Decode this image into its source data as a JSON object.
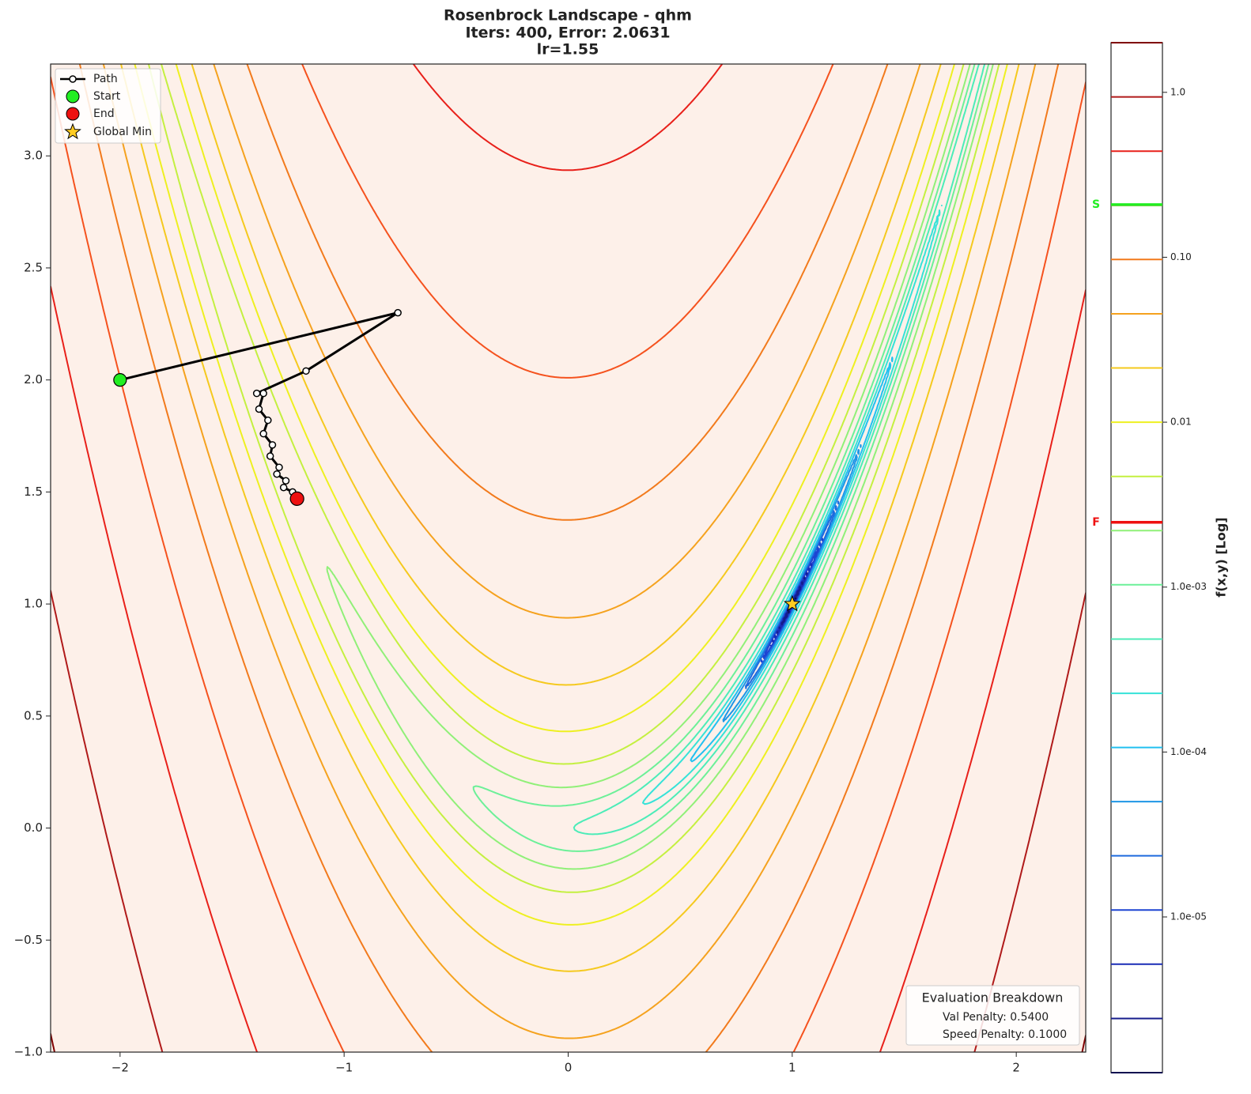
{
  "chart_data": {
    "type": "contour",
    "title": [
      "Rosenbrock Landscape - qhm",
      "Iters: 400, Error: 2.0631",
      "lr=1.55"
    ],
    "xlim": [
      -2.31,
      2.31
    ],
    "ylim": [
      -1.0,
      3.41
    ],
    "xticks": [
      {
        "value": -2,
        "label": "−2"
      },
      {
        "value": -1,
        "label": "−1"
      },
      0,
      1,
      2
    ],
    "yticks": [
      {
        "value": -1.0,
        "label": "−1.0"
      },
      {
        "value": -0.5,
        "label": "−0.5"
      },
      {
        "value": 0.0,
        "label": "0.0"
      },
      0.5,
      {
        "value": 1.0,
        "label": "1.0"
      },
      1.5,
      {
        "value": 2.0,
        "label": "2.0"
      },
      2.5,
      {
        "value": 3.0,
        "label": "3.0"
      }
    ],
    "levels": [
      2.0,
      0.938,
      0.44,
      0.2064,
      0.0969,
      0.0454,
      0.02132,
      0.01,
      0.00469,
      0.0022,
      0.001033,
      0.000484,
      0.000227,
      0.0001066,
      5e-05,
      2.35e-05,
      1.101e-05,
      5.17e-06,
      2.42e-06,
      1.137e-06
    ],
    "level_colors": [
      "#7f0000",
      "#b01a1a",
      "#e8201a",
      "#f5521e",
      "#f27a1c",
      "#f5a21e",
      "#f5c91e",
      "#eef020",
      "#c4f040",
      "#90f078",
      "#6cf098",
      "#4cecb8",
      "#36e2d8",
      "#22c0f0",
      "#1e96e6",
      "#1e6ade",
      "#1e44d2",
      "#1a2cb6",
      "#161c8c",
      "#0c0c50"
    ],
    "series": [
      {
        "name": "Path",
        "color": "#000000",
        "x": [
          -2.0,
          -0.76,
          -1.17,
          -1.39,
          -1.36,
          -1.38,
          -1.34,
          -1.36,
          -1.32,
          -1.33,
          -1.29,
          -1.3,
          -1.26,
          -1.27,
          -1.23,
          -1.21
        ],
        "y": [
          2.0,
          2.3,
          2.04,
          1.94,
          1.94,
          1.87,
          1.82,
          1.76,
          1.71,
          1.66,
          1.61,
          1.58,
          1.55,
          1.52,
          1.5,
          1.47
        ]
      }
    ],
    "start": {
      "name": "Start",
      "color": "#22ee22"
    },
    "end": {
      "name": "End",
      "color": "#ee1111"
    },
    "global_min": {
      "name": "Global Min",
      "x": 1,
      "y": 1,
      "color": "#ffcc22"
    },
    "colorbar": {
      "label": "f(x,y) [Log]",
      "log": true,
      "clim": [
        1.137e-06,
        2.0
      ],
      "ticks": [
        {
          "value": 1.0,
          "label": "1.0"
        },
        {
          "value": 0.1,
          "label": "0.10"
        },
        0.01,
        {
          "value": 0.001,
          "label": "1.0e-03"
        },
        {
          "value": 0.0001,
          "label": "1.0e-04"
        },
        {
          "value": 1e-05,
          "label": "1.0e-05"
        }
      ],
      "start_value": 0.2085,
      "start_label": "S",
      "start_color": "#22ee22",
      "end_value": 0.00247,
      "end_label": "F",
      "end_color": "#ee1111"
    },
    "annotation": {
      "title": "Evaluation Breakdown",
      "lines": [
        "Val Penalty: 0.5400",
        "Speed Penalty: 0.1000"
      ]
    }
  }
}
